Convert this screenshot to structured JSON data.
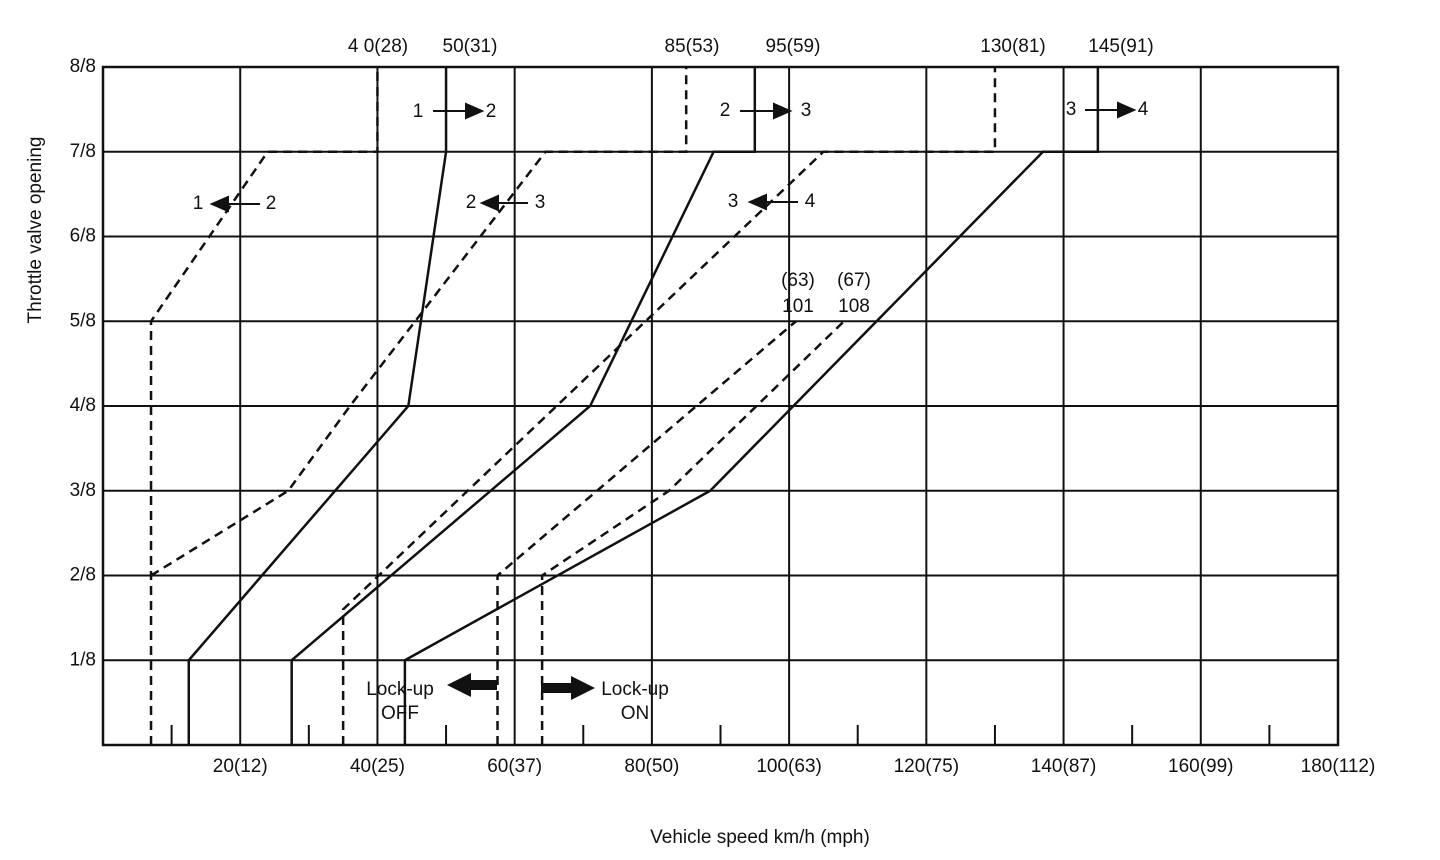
{
  "chart_data": {
    "type": "line",
    "x_label": "Vehicle speed  km/h (mph)",
    "y_label": "Throttle valve opening",
    "xlim": [
      0,
      180
    ],
    "ylim": [
      0,
      8
    ],
    "xticks": [
      {
        "value": 20,
        "label": "20(12)"
      },
      {
        "value": 40,
        "label": "40(25)"
      },
      {
        "value": 60,
        "label": "60(37)"
      },
      {
        "value": 80,
        "label": "80(50)"
      },
      {
        "value": 100,
        "label": "100(63)"
      },
      {
        "value": 120,
        "label": "120(75)"
      },
      {
        "value": 140,
        "label": "140(87)"
      },
      {
        "value": 160,
        "label": "160(99)"
      },
      {
        "value": 180,
        "label": "180(112)"
      }
    ],
    "xminorticks": [
      10,
      30,
      50,
      70,
      90,
      110,
      130,
      150,
      170
    ],
    "yticks": [
      {
        "value": 1,
        "label": "1/8"
      },
      {
        "value": 2,
        "label": "2/8"
      },
      {
        "value": 3,
        "label": "3/8"
      },
      {
        "value": 4,
        "label": "4/8"
      },
      {
        "value": 5,
        "label": "5/8"
      },
      {
        "value": 6,
        "label": "6/8"
      },
      {
        "value": 7,
        "label": "7/8"
      },
      {
        "value": 8,
        "label": "8/8"
      }
    ],
    "grid": true,
    "series": [
      {
        "color": "#111111",
        "dashed": false,
        "x": [
          12.5,
          12.5,
          44.5,
          50,
          50
        ],
        "values": [
          0,
          1,
          4,
          7,
          8
        ]
      },
      {
        "color": "#111111",
        "dashed": true,
        "x": [
          7,
          7,
          24,
          40,
          40
        ],
        "values": [
          0,
          5,
          7,
          7,
          8
        ]
      },
      {
        "color": "#111111",
        "dashed": false,
        "x": [
          27.5,
          27.5,
          71,
          89,
          95,
          95
        ],
        "values": [
          0,
          1,
          4,
          7,
          7,
          8
        ]
      },
      {
        "color": "#111111",
        "dashed": true,
        "x": [
          7,
          27,
          36,
          64.5,
          85,
          85
        ],
        "values": [
          2,
          3,
          4,
          7,
          7,
          8
        ]
      },
      {
        "color": "#111111",
        "dashed": false,
        "x": [
          44,
          44,
          88.5,
          137,
          145,
          145
        ],
        "values": [
          0,
          1,
          3,
          7,
          7,
          8
        ]
      },
      {
        "color": "#111111",
        "dashed": true,
        "x": [
          35,
          35,
          105,
          130,
          130
        ],
        "values": [
          0,
          1.6,
          7,
          7,
          8
        ]
      },
      {
        "color": "#111111",
        "dashed": true,
        "x": [
          57.5,
          57.5,
          101
        ],
        "values": [
          0,
          2,
          5
        ]
      },
      {
        "color": "#111111",
        "dashed": true,
        "x": [
          64,
          64,
          82.5,
          108
        ],
        "values": [
          0,
          2,
          3,
          5
        ]
      }
    ],
    "annotations": [
      "4 0(28)",
      "50(31)",
      "85(53)",
      "95(59)",
      "130(81)",
      "145(91)",
      "1",
      "2",
      "2",
      "3",
      "3",
      "4",
      "1",
      "2",
      "2",
      "3",
      "3",
      "4",
      "(63)",
      "101",
      "(67)",
      "108",
      "Lock-up",
      "OFF",
      "Lock-up",
      "ON"
    ]
  }
}
